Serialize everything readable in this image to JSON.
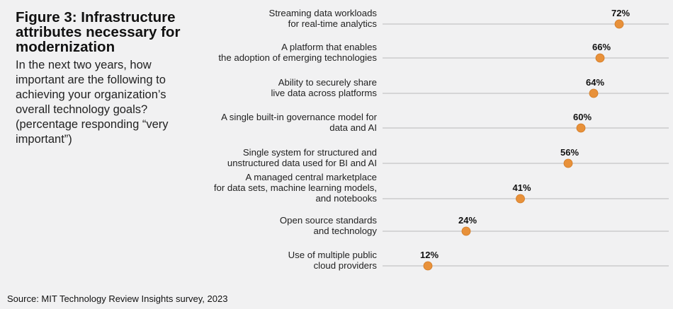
{
  "figure": {
    "title": "Figure 3: Infrastructure attributes necessary for modernization",
    "subtitle": "In the next two years, how important are the following to achieving your organization’s overall technology goals? (percentage responding “very important”)",
    "source": "Source: MIT Technology Review Insights survey, 2023"
  },
  "colors": {
    "marker": "#e8913a",
    "marker_stroke": "#d07a25",
    "gridline": "#b9b9b9",
    "background": "#f1f1f2"
  },
  "chart_data": {
    "type": "scatter",
    "title": "Figure 3: Infrastructure attributes necessary for modernization",
    "categories": [
      [
        "Streaming data workloads",
        "for real-time analytics"
      ],
      [
        "A platform that enables",
        "the adoption of emerging technologies"
      ],
      [
        "Ability to securely share",
        "live data across platforms"
      ],
      [
        "A single built-in governance model for",
        "data and AI"
      ],
      [
        "Single system for structured and",
        "unstructured data used for BI and AI"
      ],
      [
        "A managed central marketplace",
        "for data sets, machine learning models,",
        "and notebooks"
      ],
      [
        "Open source standards",
        "and technology"
      ],
      [
        "Use of multiple public",
        "cloud providers"
      ]
    ],
    "values": [
      72,
      66,
      64,
      60,
      56,
      41,
      24,
      12
    ],
    "value_labels": [
      "72%",
      "66%",
      "64%",
      "60%",
      "56%",
      "41%",
      "24%",
      "12%"
    ],
    "xlim": [
      0,
      100
    ],
    "grid": true,
    "legend": "none"
  }
}
